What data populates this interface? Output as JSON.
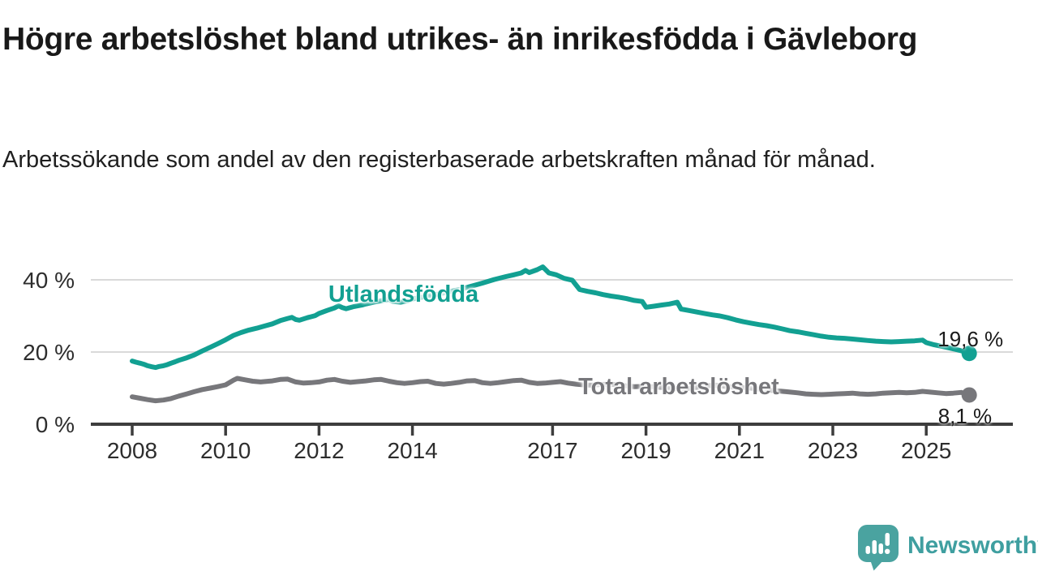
{
  "header": {
    "title": "Högre arbetslöshet bland utrikes- än inrikesfödda i Gävleborg",
    "subtitle": "Arbetssökande som andel av den registerbaserade arbetskraften månad för månad."
  },
  "colors": {
    "accent_teal": "#12a092",
    "series_gray": "#77777b",
    "gridline": "#d9d9d9",
    "axis_line": "#3d3d3d",
    "axis_text": "#2d2d2d",
    "value_label_text": "#1a1a1a",
    "brand_teal": "#3f9fa0"
  },
  "chart_data": {
    "type": "line",
    "x_ticks": [
      {
        "year": 2008,
        "label": "2008"
      },
      {
        "year": 2010,
        "label": "2010"
      },
      {
        "year": 2012,
        "label": "2012"
      },
      {
        "year": 2014,
        "label": "2014"
      },
      {
        "year": 2017,
        "label": "2017"
      },
      {
        "year": 2019,
        "label": "2019"
      },
      {
        "year": 2021,
        "label": "2021"
      },
      {
        "year": 2023,
        "label": "2023"
      },
      {
        "year": 2025,
        "label": "2025"
      }
    ],
    "y_ticks": [
      {
        "value": 0,
        "label": "0 %"
      },
      {
        "value": 20,
        "label": "20 %"
      },
      {
        "value": 40,
        "label": "40 %"
      }
    ],
    "x_range": [
      2008.0,
      2025.92
    ],
    "ylim": [
      0,
      47
    ],
    "grid": true,
    "legend_position": "inline-labels",
    "series": [
      {
        "name": "Utlandsfödda",
        "color": "#12a092",
        "end_label": "19,6 %",
        "label_anchor": [
          2012.2,
          36.0
        ],
        "points": [
          [
            2008.0,
            17.5
          ],
          [
            2008.08,
            17.2
          ],
          [
            2008.17,
            16.9
          ],
          [
            2008.25,
            16.6
          ],
          [
            2008.33,
            16.2
          ],
          [
            2008.42,
            15.9
          ],
          [
            2008.5,
            15.7
          ],
          [
            2008.58,
            16.0
          ],
          [
            2008.67,
            16.2
          ],
          [
            2008.75,
            16.5
          ],
          [
            2008.83,
            16.9
          ],
          [
            2008.92,
            17.3
          ],
          [
            2009.0,
            17.7
          ],
          [
            2009.17,
            18.4
          ],
          [
            2009.33,
            19.2
          ],
          [
            2009.5,
            20.3
          ],
          [
            2009.67,
            21.3
          ],
          [
            2009.83,
            22.3
          ],
          [
            2010.0,
            23.4
          ],
          [
            2010.17,
            24.6
          ],
          [
            2010.33,
            25.4
          ],
          [
            2010.5,
            26.1
          ],
          [
            2010.67,
            26.6
          ],
          [
            2010.83,
            27.2
          ],
          [
            2011.0,
            27.8
          ],
          [
            2011.17,
            28.7
          ],
          [
            2011.33,
            29.3
          ],
          [
            2011.42,
            29.6
          ],
          [
            2011.5,
            29.0
          ],
          [
            2011.58,
            28.8
          ],
          [
            2011.75,
            29.5
          ],
          [
            2011.92,
            30.1
          ],
          [
            2012.0,
            30.7
          ],
          [
            2012.17,
            31.5
          ],
          [
            2012.33,
            32.2
          ],
          [
            2012.42,
            32.8
          ],
          [
            2012.5,
            32.3
          ],
          [
            2012.58,
            32.0
          ],
          [
            2012.75,
            32.6
          ],
          [
            2012.92,
            33.0
          ],
          [
            2013.0,
            33.3
          ],
          [
            2013.17,
            33.8
          ],
          [
            2013.33,
            34.2
          ],
          [
            2013.5,
            34.6
          ],
          [
            2013.58,
            34.0
          ],
          [
            2013.75,
            33.8
          ],
          [
            2013.92,
            34.3
          ],
          [
            2014.0,
            34.7
          ],
          [
            2014.25,
            35.3
          ],
          [
            2014.5,
            35.9
          ],
          [
            2014.75,
            36.6
          ],
          [
            2015.0,
            37.3
          ],
          [
            2015.25,
            38.2
          ],
          [
            2015.5,
            39.1
          ],
          [
            2015.75,
            40.1
          ],
          [
            2016.0,
            40.9
          ],
          [
            2016.17,
            41.4
          ],
          [
            2016.33,
            41.9
          ],
          [
            2016.42,
            42.6
          ],
          [
            2016.5,
            42.0
          ],
          [
            2016.67,
            42.8
          ],
          [
            2016.79,
            43.6
          ],
          [
            2016.92,
            41.9
          ],
          [
            2017.08,
            41.4
          ],
          [
            2017.25,
            40.4
          ],
          [
            2017.42,
            39.9
          ],
          [
            2017.58,
            37.3
          ],
          [
            2017.75,
            36.8
          ],
          [
            2017.92,
            36.4
          ],
          [
            2018.08,
            35.9
          ],
          [
            2018.25,
            35.5
          ],
          [
            2018.42,
            35.2
          ],
          [
            2018.58,
            34.8
          ],
          [
            2018.75,
            34.3
          ],
          [
            2018.92,
            34.0
          ],
          [
            2019.0,
            32.4
          ],
          [
            2019.17,
            32.7
          ],
          [
            2019.33,
            33.0
          ],
          [
            2019.5,
            33.3
          ],
          [
            2019.67,
            33.8
          ],
          [
            2019.75,
            31.9
          ],
          [
            2019.92,
            31.5
          ],
          [
            2020.08,
            31.1
          ],
          [
            2020.25,
            30.7
          ],
          [
            2020.42,
            30.3
          ],
          [
            2020.58,
            30.0
          ],
          [
            2020.75,
            29.5
          ],
          [
            2020.92,
            28.9
          ],
          [
            2021.08,
            28.4
          ],
          [
            2021.25,
            28.0
          ],
          [
            2021.42,
            27.6
          ],
          [
            2021.58,
            27.3
          ],
          [
            2021.75,
            26.9
          ],
          [
            2021.92,
            26.4
          ],
          [
            2022.08,
            25.9
          ],
          [
            2022.25,
            25.6
          ],
          [
            2022.42,
            25.2
          ],
          [
            2022.58,
            24.8
          ],
          [
            2022.75,
            24.4
          ],
          [
            2022.92,
            24.1
          ],
          [
            2023.08,
            23.9
          ],
          [
            2023.25,
            23.8
          ],
          [
            2023.42,
            23.6
          ],
          [
            2023.58,
            23.4
          ],
          [
            2023.75,
            23.2
          ],
          [
            2023.92,
            23.0
          ],
          [
            2024.08,
            22.9
          ],
          [
            2024.25,
            22.8
          ],
          [
            2024.42,
            22.9
          ],
          [
            2024.58,
            23.0
          ],
          [
            2024.75,
            23.1
          ],
          [
            2024.92,
            23.3
          ],
          [
            2025.0,
            22.6
          ],
          [
            2025.17,
            22.0
          ],
          [
            2025.33,
            21.6
          ],
          [
            2025.5,
            21.1
          ],
          [
            2025.67,
            20.6
          ],
          [
            2025.83,
            20.1
          ],
          [
            2025.92,
            19.6
          ]
        ]
      },
      {
        "name": "Total arbetslöshet",
        "color": "#77777b",
        "end_label": "8,1 %",
        "label_anchor": [
          2017.55,
          10.3
        ],
        "points": [
          [
            2008.0,
            7.6
          ],
          [
            2008.17,
            7.2
          ],
          [
            2008.33,
            6.8
          ],
          [
            2008.5,
            6.5
          ],
          [
            2008.67,
            6.7
          ],
          [
            2008.83,
            7.1
          ],
          [
            2009.0,
            7.8
          ],
          [
            2009.17,
            8.4
          ],
          [
            2009.33,
            9.0
          ],
          [
            2009.5,
            9.6
          ],
          [
            2009.67,
            10.0
          ],
          [
            2009.83,
            10.4
          ],
          [
            2010.0,
            10.9
          ],
          [
            2010.17,
            12.2
          ],
          [
            2010.25,
            12.7
          ],
          [
            2010.42,
            12.3
          ],
          [
            2010.58,
            11.9
          ],
          [
            2010.75,
            11.7
          ],
          [
            2010.92,
            11.9
          ],
          [
            2011.0,
            12.0
          ],
          [
            2011.17,
            12.4
          ],
          [
            2011.33,
            12.5
          ],
          [
            2011.5,
            11.7
          ],
          [
            2011.67,
            11.4
          ],
          [
            2011.83,
            11.5
          ],
          [
            2012.0,
            11.7
          ],
          [
            2012.17,
            12.2
          ],
          [
            2012.33,
            12.4
          ],
          [
            2012.5,
            11.9
          ],
          [
            2012.67,
            11.6
          ],
          [
            2012.83,
            11.8
          ],
          [
            2013.0,
            12.0
          ],
          [
            2013.17,
            12.3
          ],
          [
            2013.33,
            12.4
          ],
          [
            2013.5,
            11.9
          ],
          [
            2013.67,
            11.5
          ],
          [
            2013.83,
            11.3
          ],
          [
            2014.0,
            11.5
          ],
          [
            2014.17,
            11.8
          ],
          [
            2014.33,
            11.9
          ],
          [
            2014.5,
            11.3
          ],
          [
            2014.67,
            11.1
          ],
          [
            2014.83,
            11.3
          ],
          [
            2015.0,
            11.6
          ],
          [
            2015.17,
            12.0
          ],
          [
            2015.33,
            12.1
          ],
          [
            2015.5,
            11.5
          ],
          [
            2015.67,
            11.3
          ],
          [
            2015.83,
            11.5
          ],
          [
            2016.0,
            11.8
          ],
          [
            2016.17,
            12.1
          ],
          [
            2016.33,
            12.2
          ],
          [
            2016.5,
            11.6
          ],
          [
            2016.67,
            11.3
          ],
          [
            2016.83,
            11.4
          ],
          [
            2017.0,
            11.6
          ],
          [
            2017.17,
            11.8
          ],
          [
            2017.33,
            11.4
          ],
          [
            2017.5,
            11.1
          ],
          [
            2017.67,
            10.9
          ],
          [
            2017.83,
            10.8
          ],
          [
            2018.0,
            11.0
          ],
          [
            2018.25,
            11.1
          ],
          [
            2018.5,
            10.7
          ],
          [
            2018.75,
            10.4
          ],
          [
            2019.0,
            10.5
          ],
          [
            2019.25,
            10.3
          ],
          [
            2019.5,
            10.0
          ],
          [
            2019.75,
            9.8
          ],
          [
            2020.0,
            10.0
          ],
          [
            2020.25,
            10.6
          ],
          [
            2020.5,
            10.8
          ],
          [
            2020.75,
            10.4
          ],
          [
            2021.0,
            10.2
          ],
          [
            2021.25,
            10.0
          ],
          [
            2021.5,
            9.6
          ],
          [
            2021.75,
            9.3
          ],
          [
            2022.0,
            9.0
          ],
          [
            2022.25,
            8.7
          ],
          [
            2022.42,
            8.4
          ],
          [
            2022.58,
            8.3
          ],
          [
            2022.75,
            8.2
          ],
          [
            2022.92,
            8.3
          ],
          [
            2023.08,
            8.4
          ],
          [
            2023.25,
            8.5
          ],
          [
            2023.42,
            8.6
          ],
          [
            2023.58,
            8.4
          ],
          [
            2023.75,
            8.3
          ],
          [
            2023.92,
            8.4
          ],
          [
            2024.08,
            8.6
          ],
          [
            2024.25,
            8.7
          ],
          [
            2024.42,
            8.8
          ],
          [
            2024.58,
            8.7
          ],
          [
            2024.75,
            8.8
          ],
          [
            2024.92,
            9.1
          ],
          [
            2025.08,
            8.9
          ],
          [
            2025.25,
            8.7
          ],
          [
            2025.42,
            8.5
          ],
          [
            2025.58,
            8.6
          ],
          [
            2025.75,
            8.8
          ],
          [
            2025.92,
            8.1
          ]
        ]
      }
    ]
  },
  "footer": {
    "brand": "Newsworthy",
    "logo_icon": "speech-bubble-bar-chart"
  }
}
